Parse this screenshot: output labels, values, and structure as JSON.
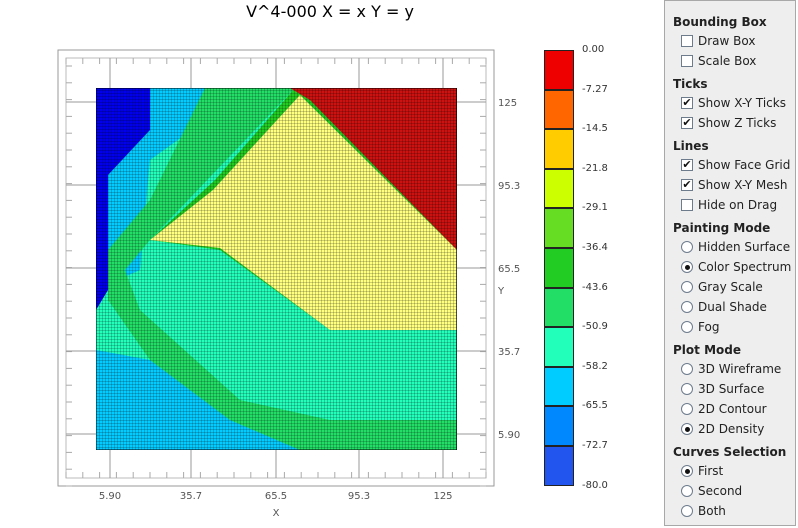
{
  "title": "V^4-000 X = x Y = y",
  "axes": {
    "x_name": "X",
    "y_name": "Y",
    "x_ticks": [
      "5.90",
      "35.7",
      "65.5",
      "95.3",
      "125"
    ],
    "y_ticks": [
      "125",
      "95.3",
      "65.5",
      "35.7",
      "5.90"
    ]
  },
  "legend": {
    "labels": [
      "0.00",
      "-7.27",
      "-14.5",
      "-21.8",
      "-29.1",
      "-36.4",
      "-43.6",
      "-50.9",
      "-58.2",
      "-65.5",
      "-72.7",
      "-80.0"
    ],
    "colors": [
      "#ee0000",
      "#ff6600",
      "#ffcc00",
      "#ccff00",
      "#66dd22",
      "#22cc22",
      "#22dd66",
      "#22ffbb",
      "#00ccff",
      "#0088ff",
      "#2255ee",
      "#0000ee"
    ]
  },
  "panel": {
    "bounding_box": {
      "title": "Bounding Box",
      "items": [
        {
          "label": "Draw Box",
          "checked": false
        },
        {
          "label": "Scale Box",
          "checked": false
        }
      ]
    },
    "ticks": {
      "title": "Ticks",
      "items": [
        {
          "label": "Show X-Y Ticks",
          "checked": true
        },
        {
          "label": "Show Z Ticks",
          "checked": true
        }
      ]
    },
    "lines": {
      "title": "Lines",
      "items": [
        {
          "label": "Show Face Grid",
          "checked": true
        },
        {
          "label": "Show X-Y Mesh",
          "checked": true
        },
        {
          "label": "Hide on Drag",
          "checked": false
        }
      ]
    },
    "painting_mode": {
      "title": "Painting Mode",
      "items": [
        {
          "label": "Hidden Surface",
          "selected": false
        },
        {
          "label": "Color Spectrum",
          "selected": true
        },
        {
          "label": "Gray Scale",
          "selected": false
        },
        {
          "label": "Dual Shade",
          "selected": false
        },
        {
          "label": "Fog",
          "selected": false
        }
      ]
    },
    "plot_mode": {
      "title": "Plot Mode",
      "items": [
        {
          "label": "3D Wireframe",
          "selected": false
        },
        {
          "label": "3D Surface",
          "selected": false
        },
        {
          "label": "2D Contour",
          "selected": false
        },
        {
          "label": "2D Density",
          "selected": true
        }
      ]
    },
    "curves_selection": {
      "title": "Curves Selection",
      "items": [
        {
          "label": "First",
          "selected": true
        },
        {
          "label": "Second",
          "selected": false
        },
        {
          "label": "Both",
          "selected": false
        }
      ]
    }
  }
}
